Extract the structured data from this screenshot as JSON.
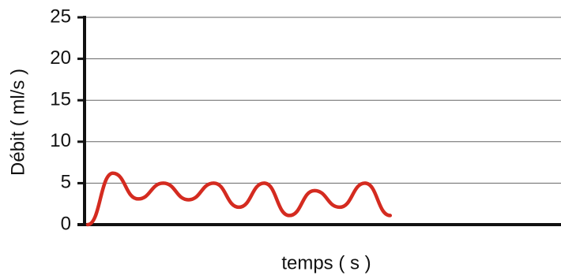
{
  "chart_data": {
    "type": "line",
    "x_label": "temps ( s )",
    "y_label": "Débit ( ml/s )",
    "categories": [
      null,
      null,
      null,
      null,
      null,
      null,
      null,
      null,
      null,
      null,
      null,
      null,
      null
    ],
    "values": [
      0,
      6.2,
      3.1,
      5.0,
      3.0,
      5.0,
      2.1,
      5.0,
      1.1,
      4.1,
      2.1,
      5.0,
      1.1
    ],
    "color": "#d42b20",
    "ylim": [
      0,
      25
    ],
    "yticks": [
      0,
      5,
      10,
      15,
      20,
      25
    ],
    "grid": true
  }
}
